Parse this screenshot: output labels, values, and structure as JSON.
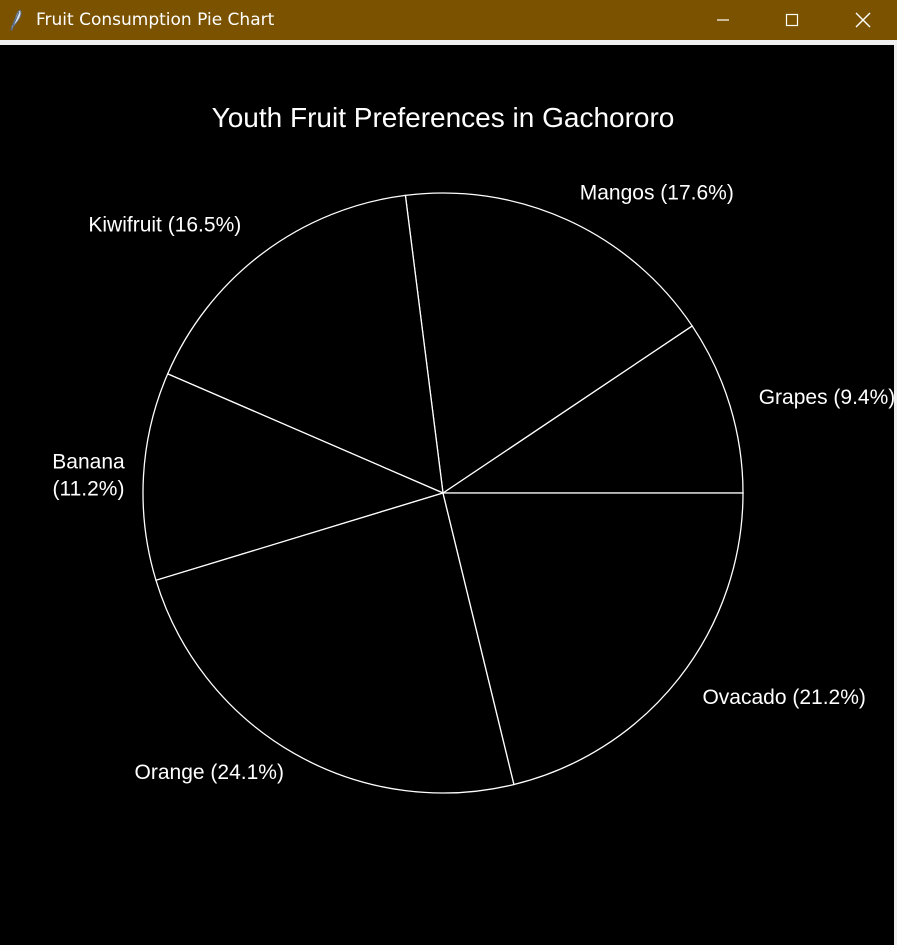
{
  "window": {
    "title": "Fruit Consumption Pie Chart",
    "titlebar_color": "#7a5200",
    "icon": "feather-icon",
    "controls": [
      "minimize-icon",
      "maximize-icon",
      "close-icon"
    ]
  },
  "chart_data": {
    "type": "pie",
    "title": "Youth Fruit Preferences in Gachororo",
    "slices": [
      {
        "label": "Grapes",
        "value": 9.4,
        "display": "Grapes (9.4%)"
      },
      {
        "label": "Mangos",
        "value": 17.6,
        "display": "Mangos (17.6%)"
      },
      {
        "label": "Kiwifruit",
        "value": 16.5,
        "display": "Kiwifruit (16.5%)"
      },
      {
        "label": "Banana",
        "value": 11.2,
        "display": "Banana (11.2%)",
        "display_lines": [
          "Banana",
          "(11.2%)"
        ]
      },
      {
        "label": "Orange",
        "value": 24.1,
        "display": "Orange (24.1%)"
      },
      {
        "label": "Ovacado",
        "value": 21.2,
        "display": "Ovacado (21.2%)"
      }
    ],
    "start_angle_deg": 0,
    "direction": "counterclockwise",
    "background": "#000000",
    "slice_fill": "#000000",
    "edge_color": "#ffffff",
    "text_color": "#ffffff"
  }
}
